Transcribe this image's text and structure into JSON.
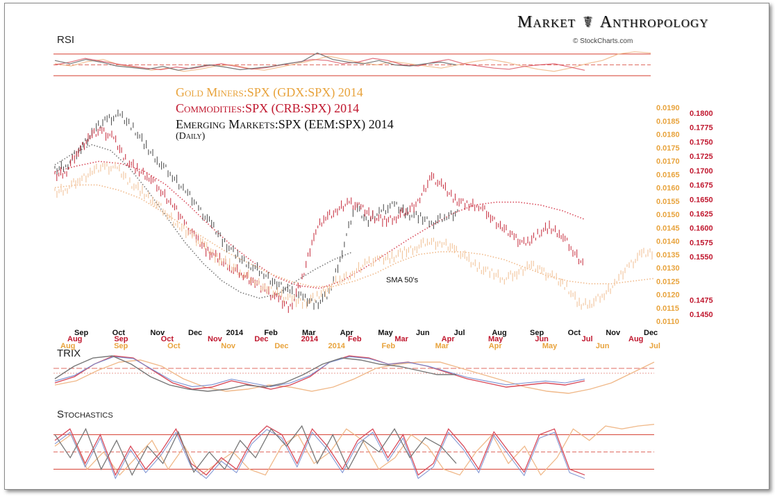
{
  "brand": {
    "title_left": "Market",
    "symbol": "☤",
    "title_right": "Anthropology",
    "source": "© StockCharts.com"
  },
  "colors": {
    "gold": "#e8a33c",
    "commodities": "#c0172e",
    "emerging": "#111111",
    "gold_line": "#f0b98a",
    "comm_line": "#d84a5a",
    "em_line": "#777777",
    "trix_blue": "#7a8fd0",
    "ref_line": "#d53b2e"
  },
  "panels": {
    "rsi_label": "RSI",
    "trix_label": "TRIX",
    "stoch_label": "Stochastics"
  },
  "chart_data": {
    "type": "line",
    "title_lines": [
      {
        "text": "Gold Miners:SPX (GDX:SPX) 2014",
        "series": "gold"
      },
      {
        "text": "Commodities:SPX (CRB:SPX) 2014",
        "series": "commodities"
      },
      {
        "text": "Emerging Markets:SPX (EEM:SPX) 2014",
        "series": "emerging"
      }
    ],
    "subtitle": "(Daily)",
    "annotation": "SMA 50's",
    "axes": {
      "gold_ticks": [
        "0.0190",
        "0.0185",
        "0.0180",
        "0.0175",
        "0.0170",
        "0.0165",
        "0.0160",
        "0.0155",
        "0.0150",
        "0.0145",
        "0.0140",
        "0.0135",
        "0.0130",
        "0.0125",
        "0.0120",
        "0.0115",
        "0.0110"
      ],
      "gold_range": [
        0.011,
        0.019
      ],
      "comm_ticks": [
        "0.1800",
        "0.1775",
        "0.1750",
        "0.1725",
        "0.1700",
        "0.1675",
        "0.1650",
        "0.1625",
        "0.1600",
        "0.1575",
        "0.1550",
        "0.1475",
        "0.1450"
      ],
      "comm_range": [
        0.145,
        0.18
      ]
    },
    "month_rows": {
      "emerging": [
        "Sep",
        "Oct",
        "Nov",
        "Dec",
        "2014",
        "Feb",
        "Mar",
        "Apr",
        "May",
        "Jun",
        "Jul",
        "Aug",
        "Sep",
        "Oct",
        "Nov",
        "Dec"
      ],
      "commodities": [
        "Aug",
        "Sep",
        "Oct",
        "Nov",
        "Dec",
        "2014",
        "Feb",
        "Mar",
        "Apr",
        "May",
        "Jun",
        "Jul",
        "Aug"
      ],
      "gold": [
        "Aug",
        "Sep",
        "Oct",
        "Nov",
        "Dec",
        "2014",
        "Feb",
        "Mar",
        "Apr",
        "May",
        "Jun",
        "Jul"
      ]
    },
    "series": [
      {
        "name": "EEM:SPX",
        "key": "emerging",
        "values": [
          0.17,
          0.1712,
          0.174,
          0.177,
          0.179,
          0.1795,
          0.1775,
          0.174,
          0.1715,
          0.169,
          0.1665,
          0.1635,
          0.1605,
          0.1575,
          0.155,
          0.1535,
          0.152,
          0.1502,
          0.149,
          0.1478,
          0.1468,
          0.1485,
          0.156,
          0.164,
          0.161,
          0.163,
          0.164,
          0.1625,
          0.1618,
          0.161,
          0.162,
          0.163
        ]
      },
      {
        "name": "CRB:SPX",
        "key": "commodities",
        "values": [
          0.169,
          0.17,
          0.1735,
          0.176,
          0.177,
          0.1755,
          0.172,
          0.17,
          0.169,
          0.1665,
          0.164,
          0.161,
          0.158,
          0.156,
          0.1545,
          0.153,
          0.1518,
          0.1505,
          0.149,
          0.1475,
          0.1462,
          0.151,
          0.159,
          0.162,
          0.163,
          0.1645,
          0.1635,
          0.162,
          0.1612,
          0.162,
          0.163,
          0.165,
          0.169,
          0.167,
          0.165,
          0.164,
          0.164,
          0.162,
          0.16,
          0.1585,
          0.157,
          0.159,
          0.16,
          0.159,
          0.156,
          0.1535
        ]
      },
      {
        "name": "GDX:SPX",
        "key": "gold",
        "values": [
          0.0158,
          0.016,
          0.0163,
          0.0166,
          0.0168,
          0.0167,
          0.0162,
          0.0158,
          0.0155,
          0.015,
          0.0145,
          0.0142,
          0.0138,
          0.0134,
          0.0131,
          0.0128,
          0.0125,
          0.0122,
          0.012,
          0.0118,
          0.0117,
          0.0119,
          0.0123,
          0.0126,
          0.0128,
          0.0132,
          0.0133,
          0.0134,
          0.0136,
          0.0138,
          0.014,
          0.0139,
          0.0137,
          0.0133,
          0.013,
          0.0128,
          0.0126,
          0.0128,
          0.0131,
          0.0129,
          0.0126,
          0.0123,
          0.0116,
          0.0117,
          0.012,
          0.0125,
          0.0131,
          0.0135,
          0.0136
        ]
      }
    ],
    "sma50": [
      {
        "key": "emerging",
        "values": [
          0.171,
          0.173,
          0.1745,
          0.1735,
          0.1705,
          0.1665,
          0.162,
          0.1575,
          0.1538,
          0.1508,
          0.1488,
          0.1478,
          0.1485,
          0.1508,
          0.1528,
          0.1545,
          0.1558
        ]
      },
      {
        "key": "commodities",
        "values": [
          0.1698,
          0.1708,
          0.1716,
          0.1712,
          0.17,
          0.1676,
          0.1642,
          0.1605,
          0.157,
          0.154,
          0.1515,
          0.15,
          0.1495,
          0.1508,
          0.153,
          0.1555,
          0.158,
          0.1603,
          0.1625,
          0.164,
          0.1645,
          0.1645,
          0.164,
          0.163,
          0.1615
        ]
      },
      {
        "key": "gold",
        "values": [
          0.016,
          0.0161,
          0.0161,
          0.0159,
          0.0156,
          0.0151,
          0.0146,
          0.0141,
          0.0136,
          0.0132,
          0.0128,
          0.0125,
          0.0123,
          0.0123,
          0.0125,
          0.0128,
          0.0132,
          0.0135,
          0.0136,
          0.0136,
          0.0135,
          0.0133,
          0.013,
          0.0127,
          0.0125,
          0.0124,
          0.0124,
          0.0125,
          0.0126
        ]
      }
    ],
    "rsi": {
      "levels": [
        70,
        50,
        30
      ],
      "range": [
        20,
        80
      ],
      "emerging": [
        58,
        52,
        60,
        55,
        48,
        45,
        42,
        47,
        40,
        45,
        50,
        46,
        41,
        44,
        47,
        52,
        56,
        72,
        60,
        55,
        52,
        58,
        50,
        48,
        52,
        55,
        50
      ],
      "commodities": [
        50,
        55,
        62,
        57,
        52,
        48,
        44,
        41,
        46,
        43,
        48,
        52,
        47,
        42,
        45,
        50,
        55,
        60,
        58,
        52,
        55,
        62,
        58,
        50,
        48,
        55,
        60,
        52,
        48,
        44,
        42,
        47,
        50,
        52,
        46,
        40
      ],
      "gold": [
        52,
        48,
        56,
        60,
        50,
        46,
        40,
        44,
        38,
        42,
        48,
        50,
        44,
        40,
        46,
        52,
        58,
        66,
        60,
        54,
        50,
        56,
        52,
        48,
        44,
        50,
        56,
        60,
        55,
        48,
        42,
        38,
        44,
        52,
        58,
        70,
        74,
        72
      ]
    },
    "trix": {
      "range": [
        -1,
        1
      ],
      "emerging": [
        -0.2,
        0.4,
        0.8,
        0.9,
        0.5,
        -0.1,
        -0.5,
        -0.7,
        -0.8,
        -0.7,
        -0.5,
        -0.6,
        -0.4,
        0.0,
        0.5,
        0.8,
        0.7,
        0.5,
        0.4,
        0.2,
        0.0,
        0.0
      ],
      "commodities": [
        -0.4,
        -0.1,
        0.5,
        0.9,
        0.8,
        0.2,
        -0.4,
        -0.7,
        -0.6,
        -0.3,
        -0.5,
        -0.7,
        -0.5,
        -0.1,
        0.6,
        0.9,
        0.8,
        0.5,
        0.6,
        0.4,
        0.1,
        -0.2,
        -0.4,
        -0.6,
        -0.5,
        -0.4,
        -0.5,
        -0.3
      ],
      "gold": [
        -0.5,
        -0.3,
        0.2,
        0.6,
        0.7,
        0.4,
        -0.2,
        -0.6,
        -0.8,
        -0.7,
        -0.5,
        -0.6,
        -0.8,
        -0.6,
        -0.2,
        0.3,
        0.5,
        0.6,
        0.6,
        0.3,
        0.0,
        -0.3,
        -0.6,
        -0.8,
        -0.9,
        -0.7,
        -0.4,
        0.1,
        0.6
      ]
    },
    "stochastics": {
      "levels": [
        80,
        50,
        20
      ],
      "range": [
        0,
        100
      ],
      "emerging": [
        80,
        40,
        90,
        20,
        70,
        10,
        60,
        30,
        85,
        15,
        50,
        20,
        70,
        40,
        90,
        60,
        95,
        30,
        80,
        20,
        70,
        50,
        90,
        40,
        75,
        60,
        30
      ],
      "commodities": [
        70,
        90,
        30,
        80,
        10,
        60,
        20,
        50,
        90,
        30,
        10,
        40,
        20,
        70,
        95,
        80,
        30,
        90,
        60,
        20,
        70,
        90,
        40,
        80,
        10,
        30,
        90,
        60,
        20,
        85,
        50,
        15,
        80,
        90,
        20,
        10
      ],
      "gold": [
        60,
        80,
        20,
        50,
        10,
        40,
        70,
        20,
        60,
        10,
        30,
        50,
        20,
        10,
        60,
        80,
        30,
        50,
        90,
        70,
        20,
        40,
        80,
        60,
        20,
        10,
        50,
        80,
        30,
        60,
        10,
        40,
        90,
        70,
        95,
        90,
        95,
        98
      ]
    }
  }
}
